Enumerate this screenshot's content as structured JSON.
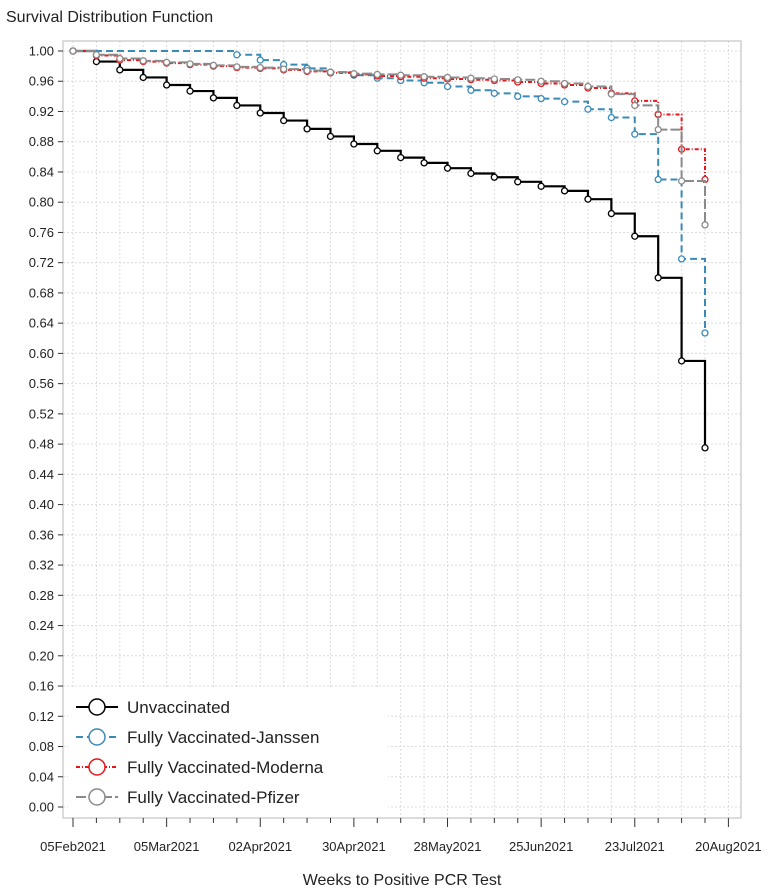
{
  "chart_data": {
    "type": "line",
    "step": true,
    "title": "Survival Distribution Function",
    "xlabel": "Weeks to Positive PCR Test",
    "ylabel": "",
    "x_ticks": [
      "05Feb2021",
      "05Mar2021",
      "02Apr2021",
      "30Apr2021",
      "28May2021",
      "25Jun2021",
      "23Jul2021",
      "20Aug2021"
    ],
    "x_range": [
      0,
      28
    ],
    "y_range": [
      0,
      1.0
    ],
    "y_ticks": [
      "0.00",
      "0.04",
      "0.08",
      "0.12",
      "0.16",
      "0.20",
      "0.24",
      "0.28",
      "0.32",
      "0.36",
      "0.40",
      "0.44",
      "0.48",
      "0.52",
      "0.56",
      "0.60",
      "0.64",
      "0.68",
      "0.72",
      "0.76",
      "0.80",
      "0.84",
      "0.88",
      "0.92",
      "0.96",
      "1.00"
    ],
    "grid": true,
    "legend_position": "bottom-left",
    "series": [
      {
        "name": "Unvaccinated",
        "color": "#000000",
        "dash": "",
        "x": [
          0,
          1,
          2,
          3,
          4,
          5,
          6,
          7,
          8,
          9,
          10,
          11,
          12,
          13,
          14,
          15,
          16,
          17,
          18,
          19,
          20,
          21,
          22,
          23,
          24,
          25,
          26,
          27
        ],
        "y": [
          1.0,
          0.986,
          0.975,
          0.965,
          0.955,
          0.947,
          0.938,
          0.928,
          0.918,
          0.908,
          0.897,
          0.887,
          0.877,
          0.868,
          0.859,
          0.852,
          0.845,
          0.838,
          0.833,
          0.827,
          0.821,
          0.815,
          0.804,
          0.785,
          0.755,
          0.7,
          0.59,
          0.475
        ]
      },
      {
        "name": "Fully Vaccinated-Janssen",
        "color": "#3a8ab5",
        "dash": "7,4",
        "x": [
          0,
          7,
          8,
          9,
          10,
          11,
          12,
          13,
          14,
          15,
          16,
          17,
          18,
          19,
          20,
          21,
          22,
          23,
          24,
          25,
          26,
          27
        ],
        "y": [
          1.0,
          0.995,
          0.988,
          0.982,
          0.977,
          0.972,
          0.968,
          0.964,
          0.961,
          0.958,
          0.953,
          0.948,
          0.944,
          0.94,
          0.937,
          0.933,
          0.923,
          0.912,
          0.89,
          0.83,
          0.725,
          0.627
        ]
      },
      {
        "name": "Fully Vaccinated-Moderna",
        "color": "#e8151b",
        "dash": "4,2,1,2",
        "x": [
          0,
          1,
          2,
          3,
          4,
          5,
          6,
          7,
          8,
          9,
          10,
          11,
          12,
          13,
          14,
          15,
          16,
          17,
          18,
          19,
          20,
          21,
          22,
          23,
          24,
          25,
          26,
          27
        ],
        "y": [
          1.0,
          0.994,
          0.988,
          0.986,
          0.984,
          0.982,
          0.98,
          0.978,
          0.977,
          0.975,
          0.973,
          0.971,
          0.969,
          0.967,
          0.966,
          0.964,
          0.963,
          0.962,
          0.961,
          0.959,
          0.957,
          0.955,
          0.951,
          0.944,
          0.934,
          0.916,
          0.87,
          0.83
        ]
      },
      {
        "name": "Fully Vaccinated-Pfizer",
        "color": "#8a8a8a",
        "dash": "10,3",
        "x": [
          0,
          1,
          2,
          3,
          4,
          5,
          6,
          7,
          8,
          9,
          10,
          11,
          12,
          13,
          14,
          15,
          16,
          17,
          18,
          19,
          20,
          21,
          22,
          23,
          24,
          25,
          26,
          27
        ],
        "y": [
          1.0,
          0.995,
          0.99,
          0.987,
          0.985,
          0.983,
          0.981,
          0.979,
          0.978,
          0.976,
          0.974,
          0.972,
          0.97,
          0.969,
          0.968,
          0.966,
          0.965,
          0.964,
          0.963,
          0.962,
          0.96,
          0.957,
          0.953,
          0.943,
          0.928,
          0.896,
          0.828,
          0.77
        ]
      }
    ]
  }
}
